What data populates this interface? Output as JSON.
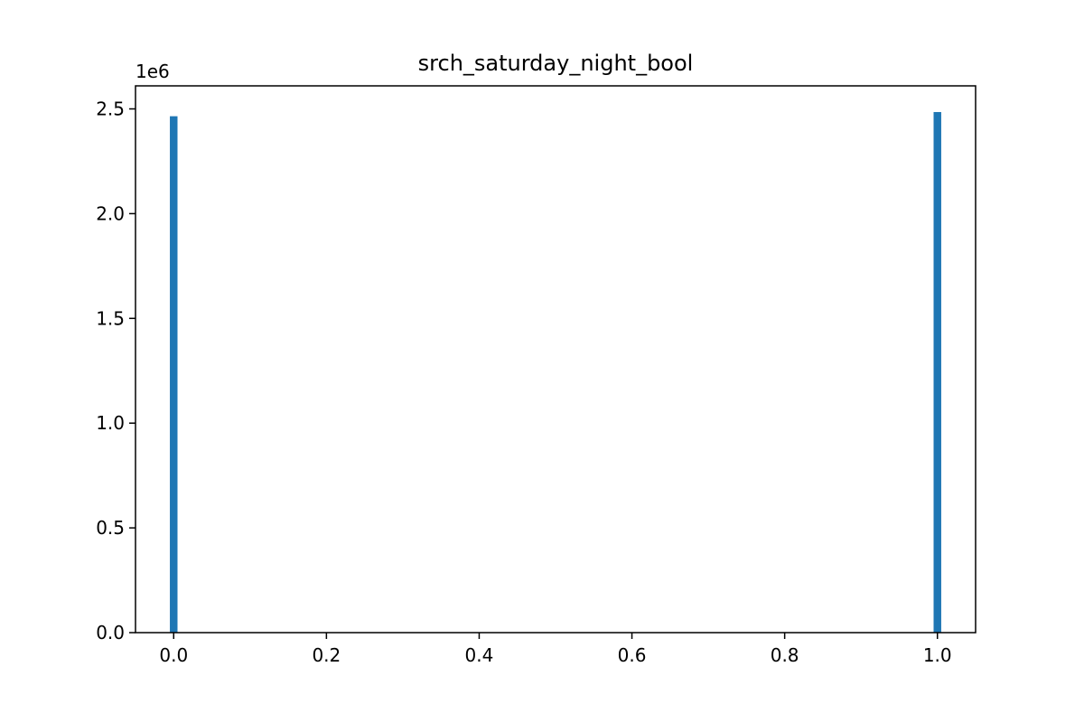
{
  "chart_data": {
    "type": "bar",
    "title": "srch_saturday_night_bool",
    "xlabel": "",
    "ylabel": "",
    "y_offset_label": "1e6",
    "xlim": [
      -0.05,
      1.05
    ],
    "ylim": [
      0,
      2.61
    ],
    "bar_width": 0.01,
    "x": [
      0.0,
      1.0
    ],
    "values": [
      2.465,
      2.485
    ],
    "x_ticks": [
      0.0,
      0.2,
      0.4,
      0.6,
      0.8,
      1.0
    ],
    "x_tick_labels": [
      "0.0",
      "0.2",
      "0.4",
      "0.6",
      "0.8",
      "1.0"
    ],
    "y_ticks": [
      0.0,
      0.5,
      1.0,
      1.5,
      2.0,
      2.5
    ],
    "y_tick_labels": [
      "0.0",
      "0.5",
      "1.0",
      "1.5",
      "2.0",
      "2.5"
    ],
    "grid": false,
    "colors": {
      "bar": "#1f77b4",
      "axis": "#000000"
    }
  }
}
